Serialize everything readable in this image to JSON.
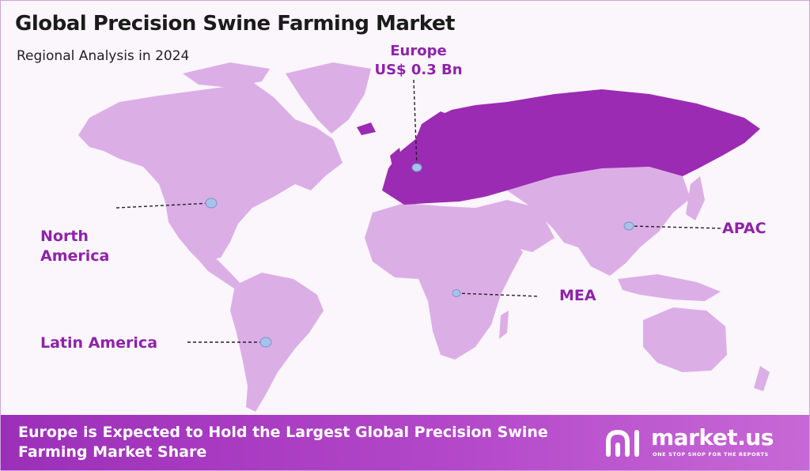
{
  "title": "Global Precision Swine Farming Market",
  "subtitle": "Regional Analysis in 2024",
  "colors": {
    "land": "#dcaee6",
    "highlight": "#9b2bb3",
    "label": "#8e23a8",
    "marker": "#a7c2ec",
    "footer": "#a43cbe"
  },
  "regions": {
    "europe": {
      "name": "Europe",
      "value": "US$ 0.3 Bn",
      "highlighted": true
    },
    "north_america": {
      "name": "North America"
    },
    "latin_america": {
      "name": "Latin America"
    },
    "mea": {
      "name": "MEA"
    },
    "apac": {
      "name": "APAC"
    }
  },
  "footer": {
    "text": "Europe is Expected to Hold the Largest Global Precision Swine Farming Market Share"
  },
  "logo": {
    "name": "market.us",
    "tagline": "ONE STOP SHOP FOR THE REPORTS"
  }
}
